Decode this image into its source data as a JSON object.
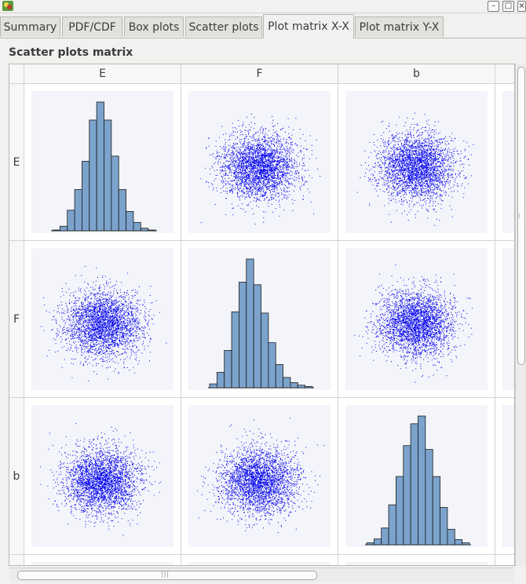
{
  "tabs": [
    {
      "label": "Summary",
      "active": false
    },
    {
      "label": "PDF/CDF",
      "active": false
    },
    {
      "label": "Box plots",
      "active": false
    },
    {
      "label": "Scatter plots",
      "active": false
    },
    {
      "label": "Plot matrix X-X",
      "active": true
    },
    {
      "label": "Plot matrix Y-X",
      "active": false
    }
  ],
  "section_title": "Scatter plots matrix",
  "matrix": {
    "columns": [
      "E",
      "F",
      "b"
    ],
    "rows": [
      "E",
      "F",
      "b"
    ]
  },
  "colors": {
    "histogram_fill": "#7ba3cc",
    "histogram_stroke": "#1a1a1a",
    "scatter_points": "#0000ee",
    "plot_background": "#f4f5fa"
  },
  "chart_data": {
    "type": "scatter",
    "variables": [
      "E",
      "F",
      "b"
    ],
    "diagonal": "histogram",
    "histograms": {
      "E": [
        0.6,
        3.5,
        16,
        32,
        54,
        86,
        100,
        86,
        58,
        32,
        15,
        6.5,
        2,
        0.6
      ],
      "F": [
        3,
        12,
        29,
        59,
        82,
        100,
        80,
        58,
        35,
        18,
        8,
        4,
        2,
        1
      ],
      "b": [
        1.5,
        4.5,
        13,
        31,
        53,
        77,
        94,
        100,
        74,
        53,
        29,
        12,
        4,
        1.5
      ]
    }
  }
}
